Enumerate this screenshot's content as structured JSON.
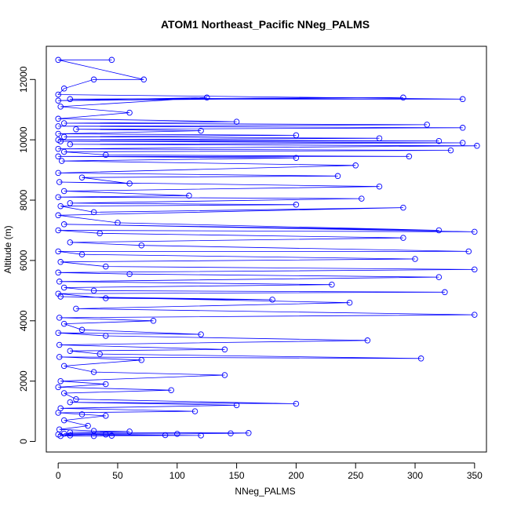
{
  "chart_data": {
    "type": "line",
    "title": "ATOM1 Northeast_Pacific NNeg_PALMS",
    "xlabel": "NNeg_PALMS",
    "ylabel": "Altitude (m)",
    "xlim": [
      -10,
      360
    ],
    "ylim": [
      -350,
      13100
    ],
    "xticks": [
      0,
      50,
      100,
      150,
      200,
      250,
      300,
      350
    ],
    "yticks": [
      0,
      2000,
      4000,
      6000,
      8000,
      10000,
      12000
    ],
    "grid": false,
    "legend": "none",
    "marker": "open-circle",
    "series_color": "#0000ff",
    "series": [
      {
        "points": [
          [
            2,
            180
          ],
          [
            45,
            190
          ],
          [
            120,
            200
          ],
          [
            0,
            230
          ],
          [
            10,
            200
          ],
          [
            30,
            180
          ],
          [
            90,
            210
          ],
          [
            40,
            230
          ],
          [
            5,
            260
          ],
          [
            100,
            250
          ],
          [
            145,
            270
          ],
          [
            160,
            280
          ],
          [
            10,
            300
          ],
          [
            60,
            330
          ],
          [
            30,
            350
          ],
          [
            1,
            400
          ],
          [
            25,
            520
          ],
          [
            5,
            700
          ],
          [
            40,
            850
          ],
          [
            20,
            900
          ],
          [
            0,
            950
          ],
          [
            115,
            1000
          ],
          [
            2,
            1100
          ],
          [
            150,
            1200
          ],
          [
            10,
            1300
          ],
          [
            200,
            1250
          ],
          [
            15,
            1400
          ],
          [
            5,
            1600
          ],
          [
            95,
            1700
          ],
          [
            0,
            1800
          ],
          [
            40,
            1900
          ],
          [
            2,
            2000
          ],
          [
            140,
            2200
          ],
          [
            30,
            2300
          ],
          [
            5,
            2500
          ],
          [
            70,
            2700
          ],
          [
            1,
            2800
          ],
          [
            305,
            2750
          ],
          [
            35,
            2900
          ],
          [
            10,
            3000
          ],
          [
            140,
            3050
          ],
          [
            1,
            3200
          ],
          [
            260,
            3350
          ],
          [
            40,
            3500
          ],
          [
            0,
            3600
          ],
          [
            120,
            3550
          ],
          [
            20,
            3700
          ],
          [
            5,
            3900
          ],
          [
            80,
            4000
          ],
          [
            1,
            4100
          ],
          [
            350,
            4200
          ],
          [
            15,
            4400
          ],
          [
            245,
            4600
          ],
          [
            2,
            4800
          ],
          [
            180,
            4700
          ],
          [
            40,
            4750
          ],
          [
            0,
            4900
          ],
          [
            325,
            4950
          ],
          [
            30,
            5000
          ],
          [
            5,
            5100
          ],
          [
            230,
            5200
          ],
          [
            1,
            5300
          ],
          [
            320,
            5450
          ],
          [
            60,
            5550
          ],
          [
            0,
            5600
          ],
          [
            350,
            5700
          ],
          [
            40,
            5800
          ],
          [
            2,
            5950
          ],
          [
            300,
            6050
          ],
          [
            20,
            6200
          ],
          [
            0,
            6300
          ],
          [
            345,
            6300
          ],
          [
            70,
            6500
          ],
          [
            10,
            6600
          ],
          [
            290,
            6750
          ],
          [
            35,
            6900
          ],
          [
            0,
            7000
          ],
          [
            350,
            6950
          ],
          [
            5,
            7200
          ],
          [
            320,
            7000
          ],
          [
            50,
            7250
          ],
          [
            0,
            7500
          ],
          [
            290,
            7750
          ],
          [
            30,
            7600
          ],
          [
            2,
            7800
          ],
          [
            200,
            7850
          ],
          [
            10,
            7900
          ],
          [
            255,
            8050
          ],
          [
            0,
            8100
          ],
          [
            110,
            8150
          ],
          [
            5,
            8300
          ],
          [
            270,
            8450
          ],
          [
            1,
            8600
          ],
          [
            60,
            8550
          ],
          [
            20,
            8750
          ],
          [
            235,
            8800
          ],
          [
            0,
            8900
          ],
          [
            250,
            9150
          ],
          [
            3,
            9300
          ],
          [
            200,
            9400
          ],
          [
            0,
            9450
          ],
          [
            295,
            9450
          ],
          [
            40,
            9500
          ],
          [
            5,
            9600
          ],
          [
            330,
            9650
          ],
          [
            0,
            9700
          ],
          [
            352,
            9800
          ],
          [
            10,
            9850
          ],
          [
            340,
            9900
          ],
          [
            2,
            9950
          ],
          [
            320,
            9960
          ],
          [
            0,
            10000
          ],
          [
            270,
            10050
          ],
          [
            5,
            10100
          ],
          [
            200,
            10150
          ],
          [
            0,
            10200
          ],
          [
            120,
            10300
          ],
          [
            15,
            10350
          ],
          [
            340,
            10400
          ],
          [
            0,
            10450
          ],
          [
            310,
            10500
          ],
          [
            5,
            10550
          ],
          [
            150,
            10600
          ],
          [
            0,
            10700
          ],
          [
            60,
            10900
          ],
          [
            2,
            11100
          ],
          [
            125,
            11400
          ],
          [
            0,
            11300
          ],
          [
            290,
            11400
          ],
          [
            10,
            11350
          ],
          [
            340,
            11350
          ],
          [
            0,
            11500
          ],
          [
            5,
            11700
          ],
          [
            30,
            12000
          ],
          [
            72,
            12000
          ],
          [
            0,
            12650
          ],
          [
            45,
            12650
          ]
        ]
      }
    ]
  }
}
